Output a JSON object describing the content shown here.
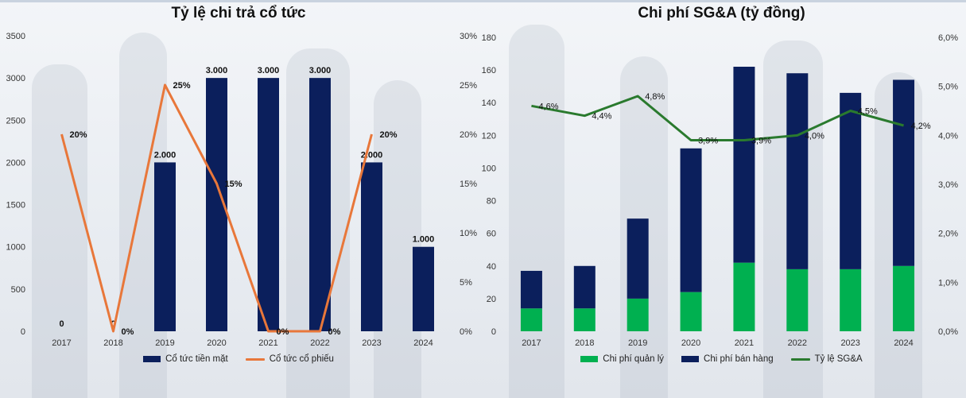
{
  "chart_data": [
    {
      "type": "bar",
      "title": "Tỷ lệ chi trả cổ tức",
      "categories": [
        "2017",
        "2018",
        "2019",
        "2020",
        "2021",
        "2022",
        "2023",
        "2024"
      ],
      "ylim": [
        0,
        3500
      ],
      "yticks": [
        "0",
        "500",
        "1000",
        "1500",
        "2000",
        "2500",
        "3000",
        "3500"
      ],
      "y2lim": [
        0,
        30
      ],
      "y2ticks": [
        "0%",
        "5%",
        "10%",
        "15%",
        "20%",
        "25%",
        "30%"
      ],
      "series": [
        {
          "name": "Cổ tức tiền mặt",
          "type": "bar",
          "axis": "left",
          "color": "#0b1f5c",
          "values": [
            0,
            0,
            2000,
            3000,
            3000,
            3000,
            2000,
            1000
          ],
          "labels": [
            "0",
            "0",
            "2.000",
            "3.000",
            "3.000",
            "3.000",
            "2.000",
            "1.000"
          ]
        },
        {
          "name": "Cổ tức cổ phiếu",
          "type": "line",
          "axis": "right",
          "color": "#e8773a",
          "values": [
            20,
            0,
            25,
            15,
            0,
            0,
            20,
            null
          ],
          "labels": [
            "20%",
            "0%",
            "25%",
            "15%",
            "0%",
            "0%",
            "20%",
            ""
          ]
        }
      ],
      "legend": "bottom",
      "grid": false
    },
    {
      "type": "bar",
      "title": "Chi phí SG&A (tỷ đồng)",
      "categories": [
        "2017",
        "2018",
        "2019",
        "2020",
        "2021",
        "2022",
        "2023",
        "2024"
      ],
      "stacked": true,
      "ylim": [
        0,
        180
      ],
      "yticks": [
        "0",
        "20",
        "40",
        "60",
        "80",
        "100",
        "120",
        "140",
        "160",
        "180"
      ],
      "y2lim": [
        0,
        6
      ],
      "y2ticks": [
        "0,0%",
        "1,0%",
        "2,0%",
        "3,0%",
        "4,0%",
        "5,0%",
        "6,0%"
      ],
      "series": [
        {
          "name": "Chi phí quản lý",
          "type": "bar",
          "axis": "left",
          "color": "#00b050",
          "values": [
            14,
            14,
            20,
            24,
            42,
            38,
            38,
            40
          ]
        },
        {
          "name": "Chi phí bán hàng",
          "type": "bar",
          "axis": "left",
          "color": "#0b1f5c",
          "values": [
            23,
            26,
            49,
            88,
            120,
            120,
            108,
            114
          ]
        },
        {
          "name": "Tỷ lệ SG&A",
          "type": "line",
          "axis": "right",
          "color": "#2a7a2e",
          "values": [
            4.6,
            4.4,
            4.8,
            3.9,
            3.9,
            4.0,
            4.5,
            4.2
          ],
          "labels": [
            "4,6%",
            "4,4%",
            "4,8%",
            "3,9%",
            "3,9%",
            "4,0%",
            "4,5%",
            "4,2%"
          ]
        }
      ],
      "legend": "bottom",
      "grid": false
    }
  ]
}
